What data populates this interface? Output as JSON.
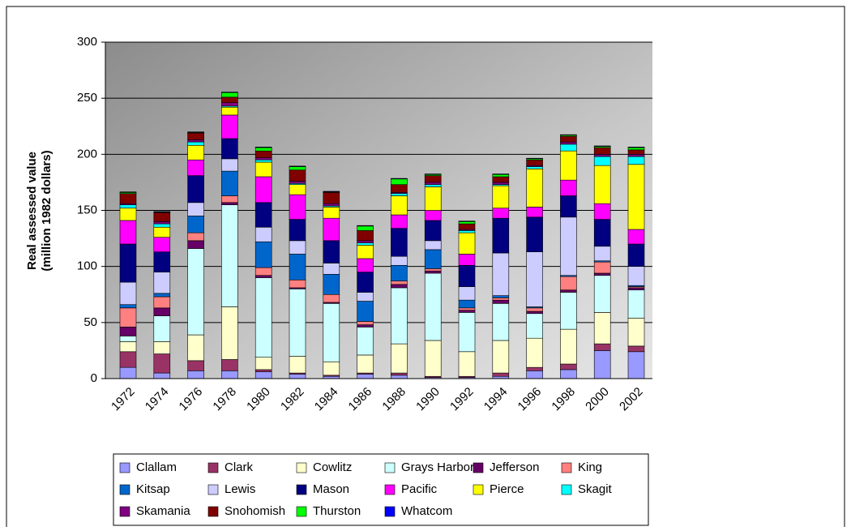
{
  "chart_data": {
    "type": "stacked-bar",
    "y_label": [
      "Real assessed value",
      "(million 1982 dollars)"
    ],
    "categories": [
      "1972",
      "1974",
      "1976",
      "1978",
      "1980",
      "1982",
      "1984",
      "1986",
      "1988",
      "1990",
      "1992",
      "1994",
      "1996",
      "1998",
      "2000",
      "2002"
    ],
    "ylim": [
      0,
      300
    ],
    "yticks": [
      0,
      50,
      100,
      150,
      200,
      250,
      300
    ],
    "grid": true,
    "series": [
      {
        "name": "Clallam",
        "color": "#9999FF",
        "values": [
          10,
          5,
          7,
          7,
          6,
          4,
          2,
          4,
          3,
          1,
          1,
          2,
          7,
          8,
          25,
          24
        ]
      },
      {
        "name": "Clark",
        "color": "#993366",
        "values": [
          14,
          17,
          9,
          10,
          2,
          1,
          1,
          1,
          2,
          1,
          1,
          3,
          3,
          5,
          6,
          5
        ]
      },
      {
        "name": "Cowlitz",
        "color": "#FFFFCC",
        "values": [
          9,
          11,
          23,
          47,
          11,
          15,
          12,
          16,
          26,
          32,
          22,
          29,
          26,
          31,
          28,
          25
        ]
      },
      {
        "name": "Grays Harbor",
        "color": "#CCFFFF",
        "values": [
          5,
          23,
          77,
          91,
          71,
          60,
          52,
          25,
          50,
          60,
          35,
          33,
          22,
          33,
          33,
          25
        ]
      },
      {
        "name": "Jefferson",
        "color": "#660066",
        "values": [
          8,
          7,
          7,
          2,
          2,
          1,
          1,
          2,
          3,
          2,
          2,
          3,
          2,
          2,
          2,
          2
        ]
      },
      {
        "name": "King",
        "color": "#FF8080",
        "values": [
          17,
          10,
          7,
          6,
          7,
          7,
          7,
          3,
          3,
          2,
          2,
          2,
          3,
          12,
          10,
          1
        ]
      },
      {
        "name": "Kitsap",
        "color": "#0066CC",
        "values": [
          3,
          3,
          15,
          22,
          23,
          23,
          18,
          18,
          14,
          17,
          7,
          2,
          1,
          1,
          1,
          1
        ]
      },
      {
        "name": "Lewis",
        "color": "#CCCCFF",
        "values": [
          20,
          19,
          12,
          11,
          13,
          12,
          10,
          8,
          8,
          8,
          12,
          38,
          49,
          52,
          13,
          17
        ]
      },
      {
        "name": "Mason",
        "color": "#000080",
        "values": [
          34,
          18,
          24,
          18,
          22,
          19,
          20,
          18,
          25,
          18,
          19,
          31,
          31,
          19,
          24,
          20
        ]
      },
      {
        "name": "Pacific",
        "color": "#FF00FF",
        "values": [
          21,
          13,
          14,
          21,
          23,
          22,
          20,
          12,
          12,
          9,
          10,
          9,
          9,
          14,
          14,
          13
        ]
      },
      {
        "name": "Pierce",
        "color": "#FFFF00",
        "values": [
          11,
          9,
          13,
          7,
          13,
          9,
          10,
          12,
          17,
          21,
          19,
          20,
          34,
          26,
          34,
          58
        ]
      },
      {
        "name": "Skagit",
        "color": "#00FFFF",
        "values": [
          3,
          3,
          3,
          1,
          2,
          1,
          1,
          2,
          2,
          2,
          2,
          1,
          2,
          6,
          8,
          7
        ]
      },
      {
        "name": "Skamania",
        "color": "#800080",
        "values": [
          1,
          2,
          2,
          3,
          2,
          2,
          2,
          2,
          1,
          2,
          1,
          2,
          1,
          2,
          2,
          2
        ]
      },
      {
        "name": "Snohomish",
        "color": "#800000",
        "values": [
          9,
          8,
          6,
          5,
          6,
          10,
          10,
          9,
          7,
          6,
          5,
          5,
          5,
          5,
          6,
          4
        ]
      },
      {
        "name": "Thurston",
        "color": "#00FF00",
        "values": [
          1,
          0.5,
          0.5,
          4,
          3,
          3,
          0.5,
          4,
          5,
          1,
          2,
          2,
          1,
          1,
          1,
          2
        ]
      },
      {
        "name": "Whatcom",
        "color": "#0000FF",
        "values": [
          0.5,
          0.5,
          0.5,
          0.5,
          0.5,
          0.5,
          0.5,
          0.5,
          0.5,
          0.5,
          0.5,
          0.5,
          0.5,
          0.5,
          0.5,
          0.5
        ]
      }
    ]
  }
}
